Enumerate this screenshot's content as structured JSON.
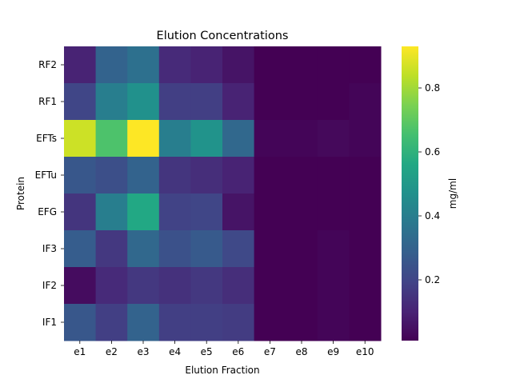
{
  "chart_data": {
    "type": "heatmap",
    "title": "Elution Concentrations",
    "xlabel": "Elution Fraction",
    "ylabel": "Protein",
    "colorbar_label": "mg/ml",
    "colormap": "viridis",
    "x_categories": [
      "e1",
      "e2",
      "e3",
      "e4",
      "e5",
      "e6",
      "e7",
      "e8",
      "e9",
      "e10"
    ],
    "y_categories": [
      "RF2",
      "RF1",
      "EFTs",
      "EFTu",
      "EFG",
      "IF3",
      "IF2",
      "IF1"
    ],
    "values": [
      [
        0.1,
        0.3,
        0.35,
        0.12,
        0.1,
        0.06,
        0.01,
        0.01,
        0.01,
        0.01
      ],
      [
        0.2,
        0.4,
        0.47,
        0.18,
        0.18,
        0.1,
        0.01,
        0.01,
        0.01,
        0.02
      ],
      [
        0.86,
        0.67,
        0.93,
        0.4,
        0.48,
        0.32,
        0.02,
        0.02,
        0.03,
        0.02
      ],
      [
        0.26,
        0.23,
        0.3,
        0.15,
        0.13,
        0.1,
        0.01,
        0.01,
        0.01,
        0.01
      ],
      [
        0.15,
        0.4,
        0.56,
        0.19,
        0.2,
        0.06,
        0.01,
        0.01,
        0.01,
        0.01
      ],
      [
        0.28,
        0.16,
        0.32,
        0.24,
        0.27,
        0.21,
        0.01,
        0.01,
        0.02,
        0.01
      ],
      [
        0.04,
        0.12,
        0.16,
        0.14,
        0.16,
        0.13,
        0.01,
        0.01,
        0.02,
        0.01
      ],
      [
        0.26,
        0.18,
        0.3,
        0.18,
        0.18,
        0.17,
        0.01,
        0.01,
        0.02,
        0.01
      ]
    ],
    "vmin": 0.01,
    "vmax": 0.93,
    "colorbar_ticks": [
      0.2,
      0.4,
      0.6,
      0.8
    ],
    "colorbar_tick_labels": [
      "0.2",
      "0.4",
      "0.6",
      "0.8"
    ]
  }
}
